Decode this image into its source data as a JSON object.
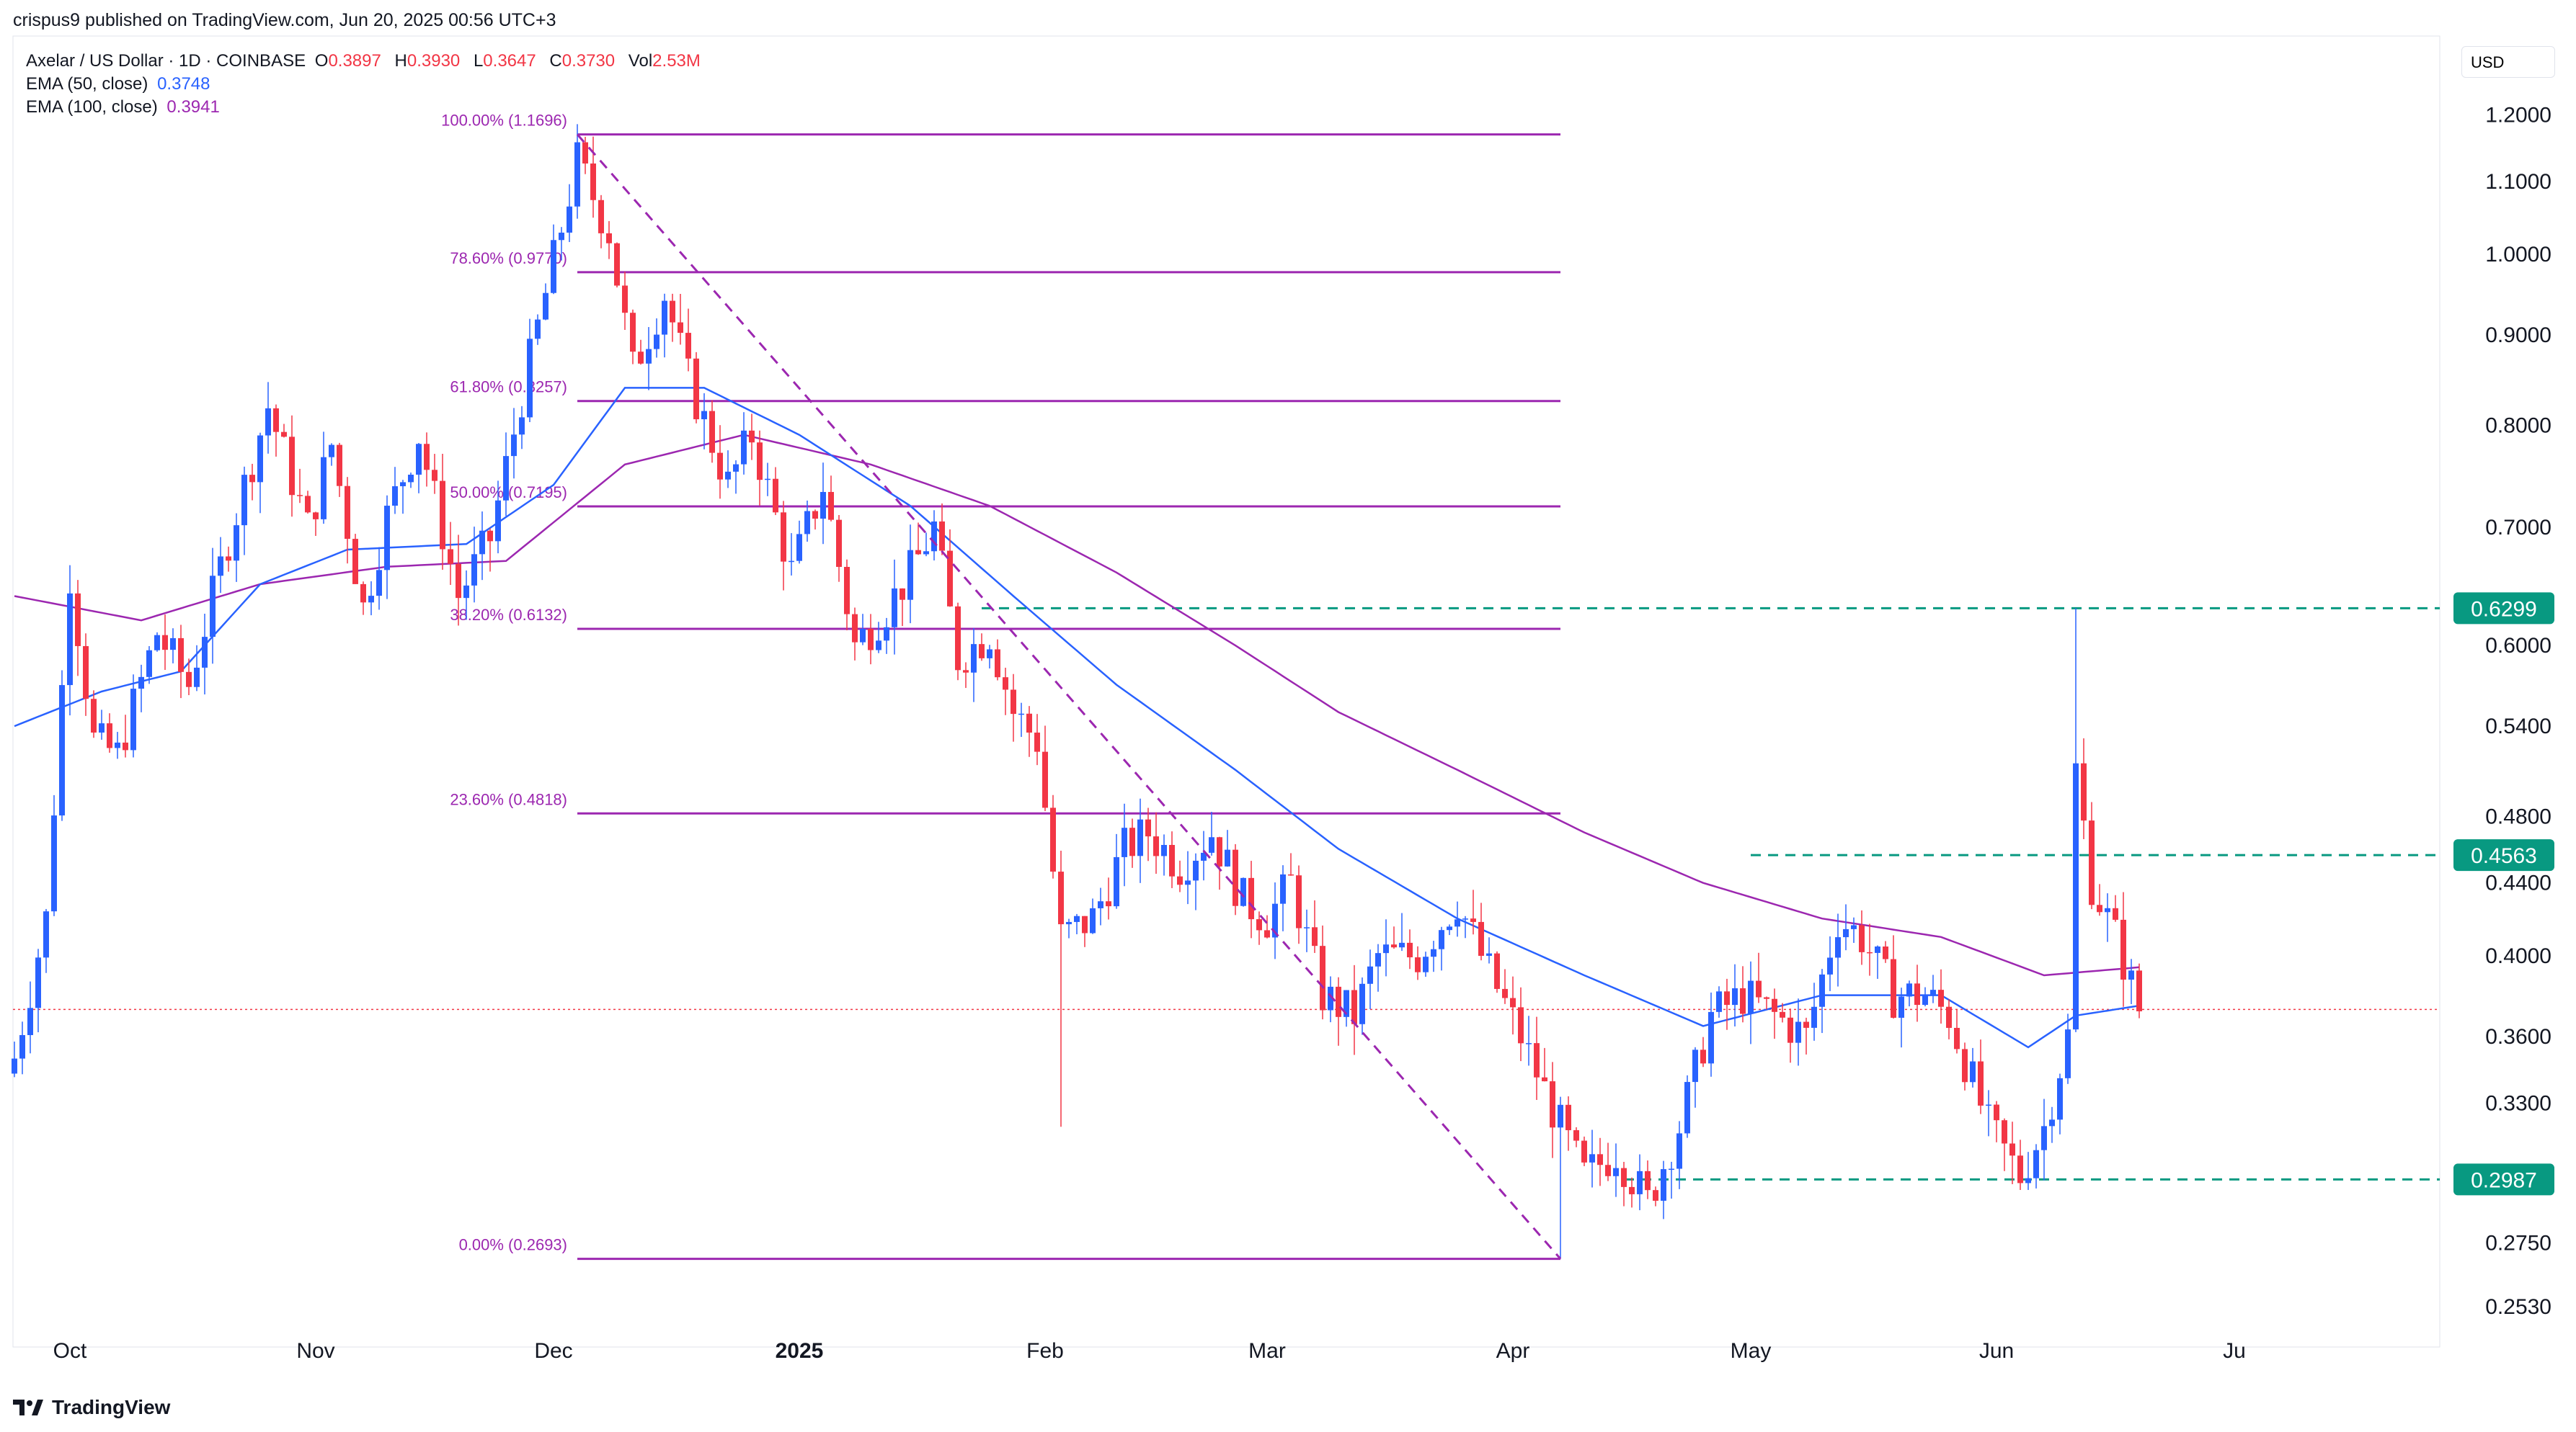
{
  "header": {
    "published": "crispus9 published on TradingView.com, Jun 20, 2025 00:56 UTC+3"
  },
  "legend": {
    "symbol": "Axelar / US Dollar · 1D · COINBASE",
    "o_label": "O",
    "o_value": "0.3897",
    "h_label": "H",
    "h_value": "0.3930",
    "l_label": "L",
    "l_value": "0.3647",
    "c_label": "C",
    "c_value": "0.3730",
    "vol_label": "Vol",
    "vol_value": "2.53M",
    "ema50_label": "EMA (50, close)",
    "ema50_value": "0.3748",
    "ema100_label": "EMA (100, close)",
    "ema100_value": "0.3941"
  },
  "currency": "USD",
  "footer": {
    "logo_text": "TradingView"
  },
  "colors": {
    "up": "#2962ff",
    "down": "#f23645",
    "ema50": "#2962ff",
    "ema100": "#9c27b0",
    "fib": "#9c27b0",
    "level": "#089981",
    "axis_text": "#131722"
  },
  "chart_data": {
    "type": "candlestick",
    "symbol": "AXL/USD",
    "timeframe": "1D",
    "y_axis": {
      "scale": "log",
      "range": [
        0.24,
        1.33
      ],
      "ticks": [
        "1.2000",
        "1.1000",
        "1.0000",
        "0.9000",
        "0.8000",
        "0.7000",
        "0.6000",
        "0.5400",
        "0.4800",
        "0.4400",
        "0.4000",
        "0.3600",
        "0.3300",
        "0.2750",
        "0.2530"
      ]
    },
    "x_axis": {
      "start_date": "2024-09-24",
      "ticks": [
        {
          "label": "Oct",
          "date": "2024-10-01"
        },
        {
          "label": "Nov",
          "date": "2024-11-01"
        },
        {
          "label": "Dec",
          "date": "2024-12-01"
        },
        {
          "label": "2025",
          "date": "2025-01-01",
          "bold": true
        },
        {
          "label": "Feb",
          "date": "2025-02-01"
        },
        {
          "label": "Mar",
          "date": "2025-03-01"
        },
        {
          "label": "Apr",
          "date": "2025-04-01"
        },
        {
          "label": "May",
          "date": "2025-05-01"
        },
        {
          "label": "Jun",
          "date": "2025-06-01"
        },
        {
          "label": "Ju",
          "date": "2025-07-01"
        }
      ]
    },
    "current_price": 0.373,
    "fib_levels": [
      {
        "label": "100.00% (1.1696)",
        "value": 1.1696
      },
      {
        "label": "78.60% (0.9770)",
        "value": 0.977
      },
      {
        "label": "61.80% (0.8257)",
        "value": 0.8257
      },
      {
        "label": "50.00% (0.7195)",
        "value": 0.7195
      },
      {
        "label": "38.20% (0.6132)",
        "value": 0.6132
      },
      {
        "label": "23.60% (0.4818)",
        "value": 0.4818
      },
      {
        "label": "0.00% (0.2693)",
        "value": 0.2693
      }
    ],
    "horizontal_levels": [
      {
        "label": "0.6299",
        "value": 0.6299,
        "from": "2025-01-24"
      },
      {
        "label": "0.4563",
        "value": 0.4563,
        "from": "2025-05-01"
      },
      {
        "label": "0.2987",
        "value": 0.2987,
        "from": "2025-04-15"
      }
    ],
    "trend_line": {
      "from": [
        "2024-12-04",
        1.1696
      ],
      "to": [
        "2025-04-07",
        0.2693
      ]
    },
    "close_anchors": [
      [
        "2024-09-24",
        0.35
      ],
      [
        "2024-09-28",
        0.42
      ],
      [
        "2024-10-01",
        0.66
      ],
      [
        "2024-10-04",
        0.53
      ],
      [
        "2024-10-07",
        0.52
      ],
      [
        "2024-10-12",
        0.61
      ],
      [
        "2024-10-16",
        0.57
      ],
      [
        "2024-10-21",
        0.69
      ],
      [
        "2024-10-26",
        0.82
      ],
      [
        "2024-10-31",
        0.7
      ],
      [
        "2024-11-03",
        0.78
      ],
      [
        "2024-11-07",
        0.63
      ],
      [
        "2024-11-10",
        0.71
      ],
      [
        "2024-11-14",
        0.79
      ],
      [
        "2024-11-19",
        0.64
      ],
      [
        "2024-11-23",
        0.69
      ],
      [
        "2024-11-28",
        0.87
      ],
      [
        "2024-12-04",
        1.13
      ],
      [
        "2024-12-08",
        1.03
      ],
      [
        "2024-12-11",
        0.86
      ],
      [
        "2024-12-15",
        0.95
      ],
      [
        "2024-12-18",
        0.85
      ],
      [
        "2024-12-23",
        0.74
      ],
      [
        "2024-12-26",
        0.79
      ],
      [
        "2024-12-31",
        0.66
      ],
      [
        "2025-01-04",
        0.74
      ],
      [
        "2025-01-08",
        0.6
      ],
      [
        "2025-01-12",
        0.63
      ],
      [
        "2025-01-15",
        0.66
      ],
      [
        "2025-01-18",
        0.7
      ],
      [
        "2025-01-21",
        0.59
      ],
      [
        "2025-01-25",
        0.61
      ],
      [
        "2025-01-28",
        0.55
      ],
      [
        "2025-01-31",
        0.53
      ],
      [
        "2025-02-03",
        0.41
      ],
      [
        "2025-02-07",
        0.42
      ],
      [
        "2025-02-11",
        0.46
      ],
      [
        "2025-02-14",
        0.47
      ],
      [
        "2025-02-18",
        0.45
      ],
      [
        "2025-02-22",
        0.47
      ],
      [
        "2025-02-26",
        0.43
      ],
      [
        "2025-03-01",
        0.42
      ],
      [
        "2025-03-04",
        0.44
      ],
      [
        "2025-03-08",
        0.38
      ],
      [
        "2025-03-12",
        0.37
      ],
      [
        "2025-03-15",
        0.4
      ],
      [
        "2025-03-20",
        0.4
      ],
      [
        "2025-03-25",
        0.43
      ],
      [
        "2025-03-28",
        0.4
      ],
      [
        "2025-04-02",
        0.36
      ],
      [
        "2025-04-07",
        0.32
      ],
      [
        "2025-04-10",
        0.3
      ],
      [
        "2025-04-14",
        0.31
      ],
      [
        "2025-04-18",
        0.29
      ],
      [
        "2025-04-22",
        0.32
      ],
      [
        "2025-04-26",
        0.37
      ],
      [
        "2025-04-30",
        0.38
      ],
      [
        "2025-05-04",
        0.37
      ],
      [
        "2025-05-08",
        0.36
      ],
      [
        "2025-05-12",
        0.42
      ],
      [
        "2025-05-15",
        0.41
      ],
      [
        "2025-05-19",
        0.38
      ],
      [
        "2025-05-23",
        0.38
      ],
      [
        "2025-05-26",
        0.37
      ],
      [
        "2025-05-31",
        0.32
      ],
      [
        "2025-06-04",
        0.3
      ],
      [
        "2025-06-07",
        0.32
      ],
      [
        "2025-06-10",
        0.36
      ],
      [
        "2025-06-11",
        0.51
      ],
      [
        "2025-06-13",
        0.44
      ],
      [
        "2025-06-16",
        0.41
      ],
      [
        "2025-06-19",
        0.373
      ]
    ],
    "ema50_anchors": [
      [
        "2024-09-24",
        0.54
      ],
      [
        "2024-10-05",
        0.565
      ],
      [
        "2024-10-15",
        0.58
      ],
      [
        "2024-10-25",
        0.65
      ],
      [
        "2024-11-05",
        0.68
      ],
      [
        "2024-11-20",
        0.685
      ],
      [
        "2024-12-01",
        0.74
      ],
      [
        "2024-12-10",
        0.84
      ],
      [
        "2024-12-20",
        0.84
      ],
      [
        "2025-01-01",
        0.79
      ],
      [
        "2025-01-15",
        0.72
      ],
      [
        "2025-01-28",
        0.64
      ],
      [
        "2025-02-10",
        0.57
      ],
      [
        "2025-02-25",
        0.51
      ],
      [
        "2025-03-10",
        0.46
      ],
      [
        "2025-03-25",
        0.42
      ],
      [
        "2025-04-10",
        0.39
      ],
      [
        "2025-04-25",
        0.365
      ],
      [
        "2025-05-10",
        0.38
      ],
      [
        "2025-05-25",
        0.38
      ],
      [
        "2025-06-05",
        0.355
      ],
      [
        "2025-06-11",
        0.37
      ],
      [
        "2025-06-19",
        0.3748
      ]
    ],
    "ema100_anchors": [
      [
        "2024-09-24",
        0.64
      ],
      [
        "2024-10-10",
        0.62
      ],
      [
        "2024-10-25",
        0.65
      ],
      [
        "2024-11-10",
        0.665
      ],
      [
        "2024-11-25",
        0.67
      ],
      [
        "2024-12-10",
        0.76
      ],
      [
        "2024-12-25",
        0.79
      ],
      [
        "2025-01-10",
        0.76
      ],
      [
        "2025-01-25",
        0.72
      ],
      [
        "2025-02-10",
        0.66
      ],
      [
        "2025-02-25",
        0.6
      ],
      [
        "2025-03-10",
        0.55
      ],
      [
        "2025-03-25",
        0.51
      ],
      [
        "2025-04-10",
        0.47
      ],
      [
        "2025-04-25",
        0.44
      ],
      [
        "2025-05-10",
        0.42
      ],
      [
        "2025-05-25",
        0.41
      ],
      [
        "2025-06-07",
        0.39
      ],
      [
        "2025-06-19",
        0.3941
      ]
    ]
  }
}
